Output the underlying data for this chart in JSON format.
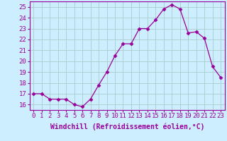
{
  "x": [
    0,
    1,
    2,
    3,
    4,
    5,
    6,
    7,
    8,
    9,
    10,
    11,
    12,
    13,
    14,
    15,
    16,
    17,
    18,
    19,
    20,
    21,
    22,
    23
  ],
  "y": [
    17.0,
    17.0,
    16.5,
    16.5,
    16.5,
    16.0,
    15.8,
    16.5,
    17.8,
    19.0,
    20.5,
    21.6,
    21.6,
    23.0,
    23.0,
    23.8,
    24.8,
    25.2,
    24.8,
    22.6,
    22.7,
    22.1,
    19.5,
    18.5
  ],
  "line_color": "#990099",
  "marker": "D",
  "marker_size": 2.5,
  "bg_color": "#cceeff",
  "grid_color": "#aacccc",
  "xlabel": "Windchill (Refroidissement éolien,°C)",
  "ylim": [
    15.5,
    25.5
  ],
  "yticks": [
    16,
    17,
    18,
    19,
    20,
    21,
    22,
    23,
    24,
    25
  ],
  "xticks": [
    0,
    1,
    2,
    3,
    4,
    5,
    6,
    7,
    8,
    9,
    10,
    11,
    12,
    13,
    14,
    15,
    16,
    17,
    18,
    19,
    20,
    21,
    22,
    23
  ],
  "tick_color": "#990099",
  "axis_color": "#990099",
  "label_color": "#990099",
  "label_fontsize": 7,
  "tick_fontsize": 6.5
}
